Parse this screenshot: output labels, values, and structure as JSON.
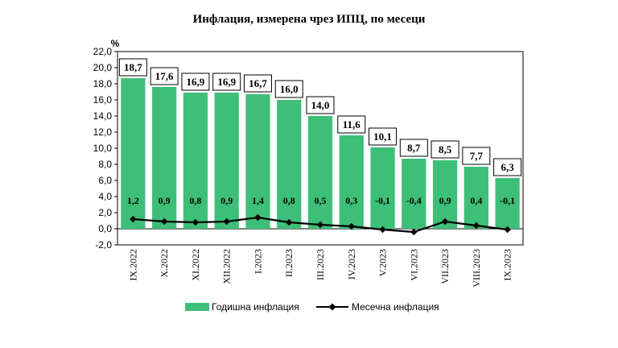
{
  "chart_data": {
    "type": "bar",
    "title": "Инфлация, измерена чрез ИПЦ, по месеци",
    "ylabel": "%",
    "ylim": [
      -2.0,
      22.0
    ],
    "ytick_step": 2.0,
    "yticks": [
      "-2,0",
      "0,0",
      "2,0",
      "4,0",
      "6,0",
      "8,0",
      "10,0",
      "12,0",
      "14,0",
      "16,0",
      "18,0",
      "20,0",
      "22,0"
    ],
    "grid": false,
    "legend_position": "bottom",
    "categories": [
      "IX.2022",
      "X.2022",
      "XI.2022",
      "XII.2022",
      "I.2023",
      "II.2023",
      "III.2023",
      "IV.2023",
      "V.2023",
      "VI.2023",
      "VII.2023",
      "VIII.2023",
      "IX.2023"
    ],
    "series": [
      {
        "name": "Годишна инфлация",
        "type": "bar",
        "color": "#3dbf78",
        "values": [
          18.7,
          17.6,
          16.9,
          16.9,
          16.7,
          16.0,
          14.0,
          11.6,
          10.1,
          8.7,
          8.5,
          7.7,
          6.3
        ],
        "labels": [
          "18,7",
          "17,6",
          "16,9",
          "16,9",
          "16,7",
          "16,0",
          "14,0",
          "11,6",
          "10,1",
          "8,7",
          "8,5",
          "7,7",
          "6,3"
        ]
      },
      {
        "name": "Месечна инфлация",
        "type": "line",
        "color": "#000000",
        "values": [
          1.2,
          0.9,
          0.8,
          0.9,
          1.4,
          0.8,
          0.5,
          0.3,
          -0.1,
          -0.4,
          0.9,
          0.4,
          -0.1
        ],
        "labels": [
          "1,2",
          "0,9",
          "0,8",
          "0,9",
          "1,4",
          "0,8",
          "0,5",
          "0,3",
          "-0,1",
          "-0,4",
          "0,9",
          "0,4",
          "-0,1"
        ]
      }
    ]
  }
}
